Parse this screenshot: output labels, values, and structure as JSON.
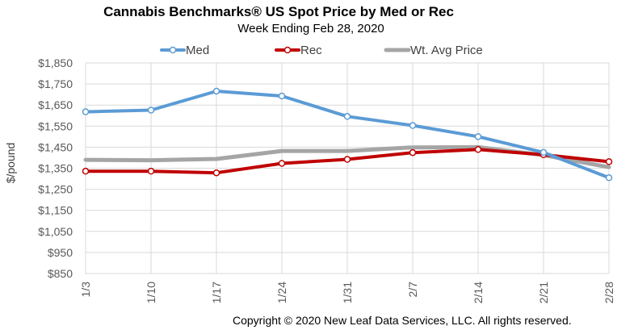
{
  "chart_data": {
    "type": "line",
    "title": "Cannabis Benchmarks® US Spot Price by Med or Rec",
    "subtitle": "Week Ending Feb 28, 2020",
    "ylabel": "$/pound",
    "xlabel": "",
    "categories": [
      "1/3",
      "1/10",
      "1/17",
      "1/24",
      "1/31",
      "2/7",
      "2/14",
      "2/21",
      "2/28"
    ],
    "ylim": [
      850,
      1850
    ],
    "yticks": [
      850,
      950,
      1050,
      1150,
      1250,
      1350,
      1450,
      1550,
      1650,
      1750,
      1850
    ],
    "ytick_labels": [
      "$850",
      "$950",
      "$1,050",
      "$1,150",
      "$1,250",
      "$1,350",
      "$1,450",
      "$1,550",
      "$1,650",
      "$1,750",
      "$1,850"
    ],
    "grid": true,
    "legend_position": "top",
    "series": [
      {
        "name": "Med",
        "color": "#5B9BD5",
        "marker": "circle",
        "values": [
          1618,
          1626,
          1716,
          1693,
          1596,
          1553,
          1500,
          1425,
          1305
        ]
      },
      {
        "name": "Rec",
        "color": "#C00000",
        "marker": "circle",
        "values": [
          1336,
          1336,
          1328,
          1373,
          1392,
          1424,
          1439,
          1414,
          1381
        ]
      },
      {
        "name": "Wt. Avg Price",
        "color": "#A5A5A5",
        "marker": "none",
        "values": [
          1390,
          1388,
          1394,
          1432,
          1432,
          1449,
          1450,
          1412,
          1355
        ]
      }
    ]
  },
  "footer": {
    "copyright": "Copyright © 2020 New Leaf Data Services, LLC. All rights reserved."
  }
}
